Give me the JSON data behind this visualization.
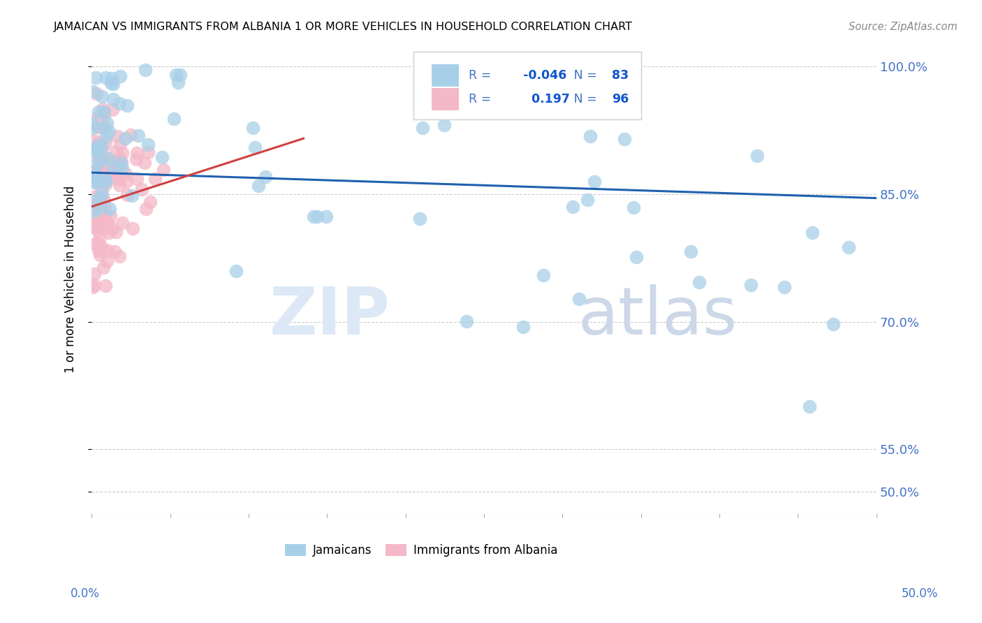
{
  "title": "JAMAICAN VS IMMIGRANTS FROM ALBANIA 1 OR MORE VEHICLES IN HOUSEHOLD CORRELATION CHART",
  "source": "Source: ZipAtlas.com",
  "ylabel": "1 or more Vehicles in Household",
  "ytick_labels": [
    "50.0%",
    "55.0%",
    "70.0%",
    "85.0%",
    "100.0%"
  ],
  "ytick_values": [
    0.5,
    0.55,
    0.7,
    0.85,
    1.0
  ],
  "xmin": 0.0,
  "xmax": 0.5,
  "ymin": 0.475,
  "ymax": 1.025,
  "legend_r_blue": "-0.046",
  "legend_n_blue": "83",
  "legend_r_pink": "0.197",
  "legend_n_pink": "96",
  "blue_color": "#a8cfe8",
  "pink_color": "#f4b8c8",
  "trend_blue_color": "#2060b0",
  "trend_pink_color": "#d04040",
  "legend_text_dark": "#4472c4",
  "legend_text_bright": "#1565c0",
  "ytick_color": "#4472c4",
  "source_color": "#888888",
  "grid_color": "#cccccc",
  "watermark_zip_color": "#dce8f5",
  "watermark_atlas_color": "#ccd8e8"
}
